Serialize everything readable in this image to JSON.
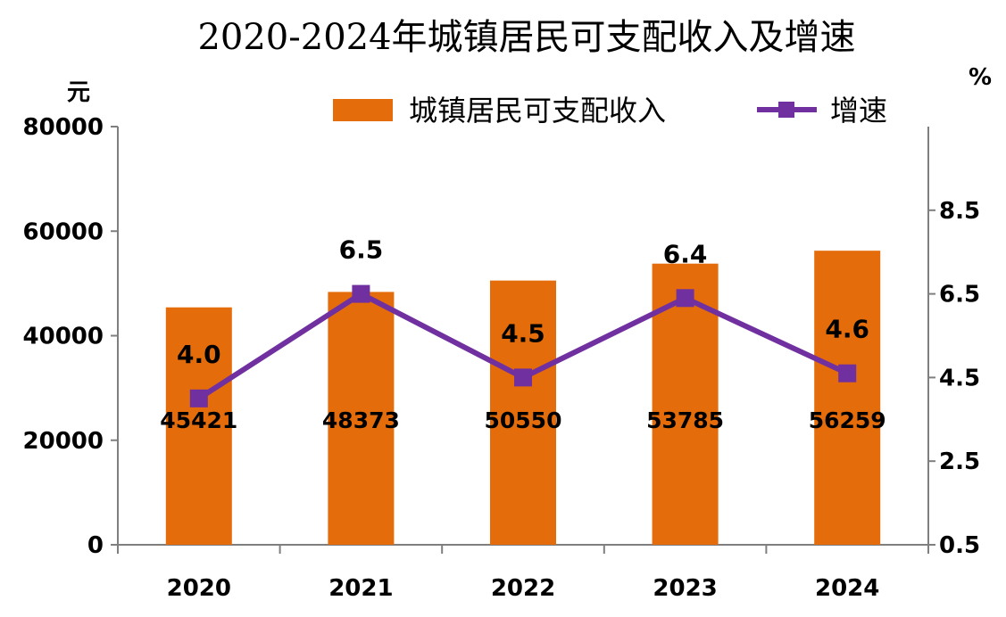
{
  "chart_data": {
    "type": "bar",
    "title": "2020-2024年城镇居民可支配收入及增速",
    "categories": [
      "2020",
      "2021",
      "2022",
      "2023",
      "2024"
    ],
    "series": [
      {
        "name": "城镇居民可支配收入",
        "type": "bar",
        "axis": "left",
        "values": [
          45421,
          48373,
          50550,
          53785,
          56259
        ],
        "color": "#E46C0A"
      },
      {
        "name": "增速",
        "type": "line",
        "axis": "right",
        "values": [
          4.0,
          6.5,
          4.5,
          6.4,
          4.6
        ],
        "labels": [
          "4.0",
          "6.5",
          "4.5",
          "6.4",
          "4.6"
        ],
        "color": "#7030A0"
      }
    ],
    "ylabel": "元",
    "y2label": "%",
    "ylim": [
      0,
      80000
    ],
    "y2lim": [
      0.5,
      10.5
    ],
    "yticks": [
      "0",
      "20000",
      "40000",
      "60000",
      "80000"
    ],
    "y2ticks": [
      "0.5",
      "2.5",
      "4.5",
      "6.5",
      "8.5"
    ],
    "legend_position": "top-right",
    "grid": false
  }
}
